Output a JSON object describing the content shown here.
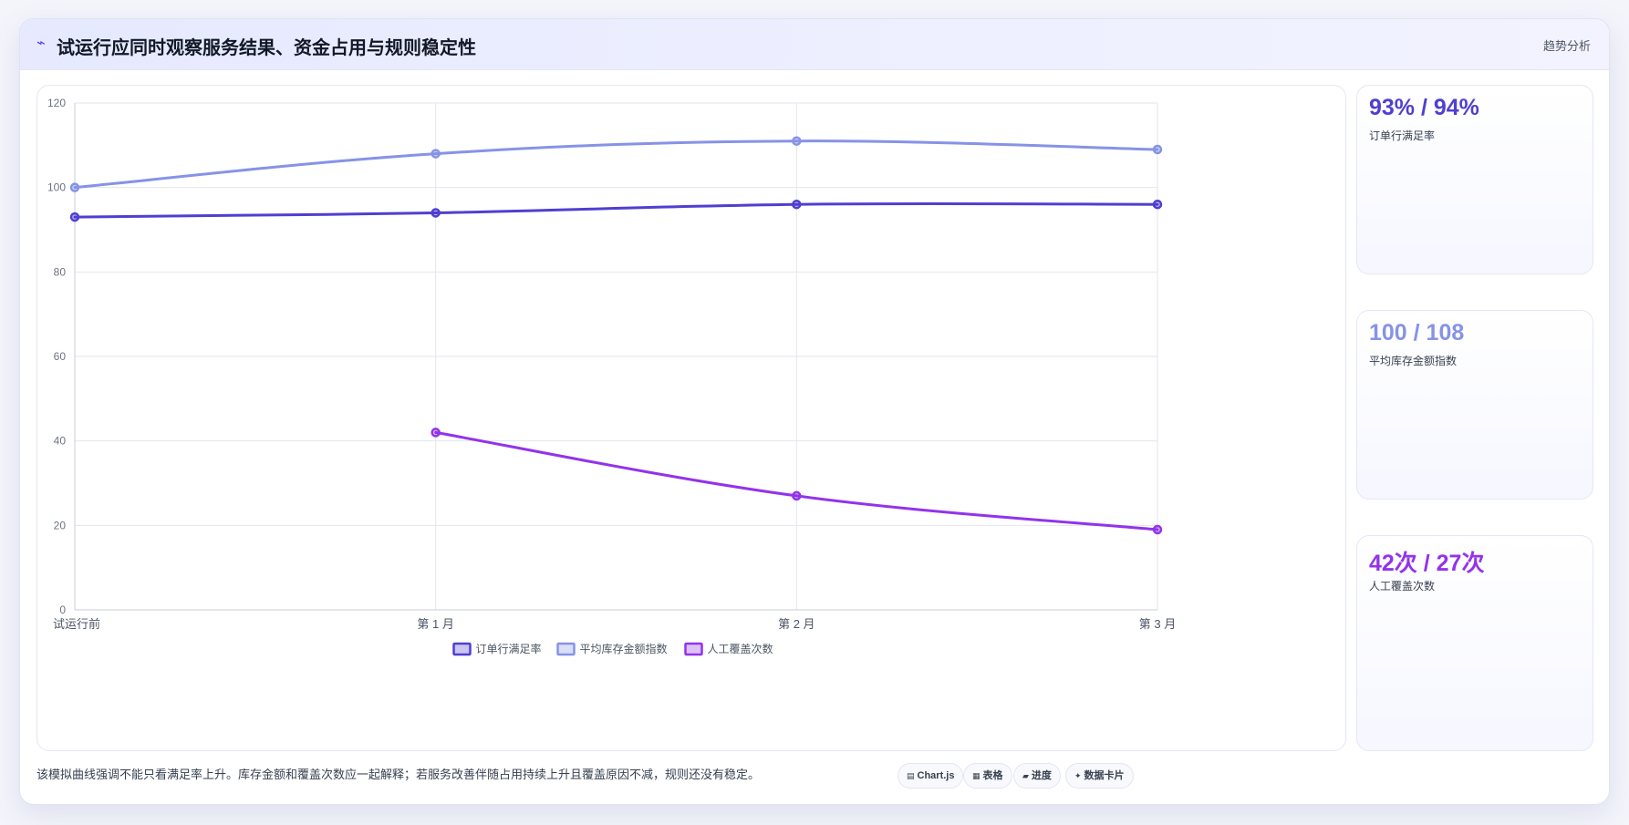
{
  "header": {
    "icon": "trend-line-icon",
    "icon_glyph": "⌁",
    "title": "试运行应同时观察服务结果、资金占用与规则稳定性",
    "tag": "趋势分析"
  },
  "chart_data": {
    "type": "line",
    "categories": [
      "试运行前",
      "第 1 月",
      "第 2 月",
      "第 3 月"
    ],
    "ylim": [
      0,
      120
    ],
    "yticks": [
      0,
      20,
      40,
      60,
      80,
      100,
      120
    ],
    "grid": true,
    "legend_position": "bottom",
    "series": [
      {
        "name": "订单行满足率",
        "values": [
          93,
          94,
          96,
          96
        ],
        "color": "#4f3fd1"
      },
      {
        "name": "平均库存金额指数",
        "values": [
          100,
          108,
          111,
          109
        ],
        "color": "#8693e6"
      },
      {
        "name": "人工覆盖次数",
        "values": [
          null,
          42,
          27,
          19
        ],
        "color": "#9333ea"
      }
    ]
  },
  "kpis": [
    {
      "value": "93% / 94%",
      "label": "订单行满足率",
      "color": "#4f3fd1"
    },
    {
      "value": "100 / 108",
      "label": "平均库存金额指数",
      "color": "#8693e6"
    },
    {
      "value": "42次 / 27次",
      "label": "人工覆盖次数",
      "color": "#9333ea"
    }
  ],
  "note": "该模拟曲线强调不能只看满足率上升。库存金额和覆盖次数应一起解释；若服务改善伴随占用持续上升且覆盖原因不减，规则还没有稳定。",
  "chips": [
    {
      "icon": "chart-icon",
      "glyph": "▤",
      "label": "Chart.js"
    },
    {
      "icon": "table-icon",
      "glyph": "▦",
      "label": "表格"
    },
    {
      "icon": "progress-icon",
      "glyph": "▰",
      "label": "进度"
    },
    {
      "icon": "data-card-icon",
      "glyph": "✦",
      "label": "数据卡片"
    }
  ]
}
